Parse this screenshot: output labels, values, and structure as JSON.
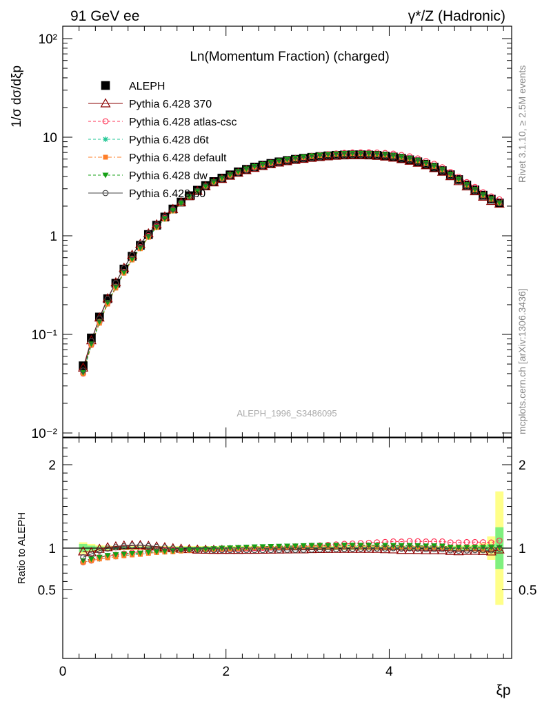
{
  "header": {
    "left": "91 GeV ee",
    "right": "γ*/Z (Hadronic)"
  },
  "side_labels": {
    "rivet": "Rivet 3.1.10, ≥ 2.5M events",
    "mcplots": "mcplots.cern.ch [arXiv:1306.3436]"
  },
  "colors": {
    "ALEPH": "#000000",
    "p370": "#8b0000",
    "atlas_csc": "#ff3355",
    "d6t": "#22c795",
    "default": "#ff7f2a",
    "dw": "#16a016",
    "p0": "#444444",
    "band_inner": "#7ff07f",
    "band_outer": "#ffff88"
  },
  "chart_data": [
    {
      "type": "scatter",
      "panel": "main",
      "title": "Ln(Momentum Fraction) (charged)",
      "analysis_label": "ALEPH_1996_S3486095",
      "ylabel": "1/σ dσ/dξp",
      "yscale": "log",
      "ylim": [
        0.01,
        130
      ],
      "xlim": [
        0,
        5.5
      ],
      "y_ticks": [
        "10⁻²",
        "10⁻¹",
        "1",
        "10",
        "10²"
      ],
      "legend_position": "top-left",
      "x": [
        0.25,
        0.35,
        0.45,
        0.55,
        0.65,
        0.75,
        0.85,
        0.95,
        1.05,
        1.15,
        1.25,
        1.35,
        1.45,
        1.55,
        1.65,
        1.75,
        1.85,
        1.95,
        2.05,
        2.15,
        2.25,
        2.35,
        2.45,
        2.55,
        2.65,
        2.75,
        2.85,
        2.95,
        3.05,
        3.15,
        3.25,
        3.35,
        3.45,
        3.55,
        3.65,
        3.75,
        3.85,
        3.95,
        4.05,
        4.15,
        4.25,
        4.35,
        4.45,
        4.55,
        4.65,
        4.75,
        4.85,
        4.95,
        5.05,
        5.15,
        5.25,
        5.35
      ],
      "series": [
        {
          "name": "ALEPH",
          "marker": "square",
          "values": [
            0.048,
            0.092,
            0.15,
            0.23,
            0.33,
            0.46,
            0.62,
            0.8,
            1.03,
            1.28,
            1.55,
            1.87,
            2.2,
            2.55,
            2.9,
            3.23,
            3.55,
            3.85,
            4.15,
            4.45,
            4.72,
            4.98,
            5.2,
            5.42,
            5.62,
            5.8,
            5.97,
            6.12,
            6.25,
            6.37,
            6.47,
            6.55,
            6.6,
            6.63,
            6.63,
            6.6,
            6.54,
            6.44,
            6.3,
            6.12,
            5.9,
            5.63,
            5.32,
            4.97,
            4.58,
            4.16,
            3.72,
            3.27,
            2.92,
            2.58,
            2.35,
            2.15
          ]
        },
        {
          "name": "Pythia 6.428 370",
          "marker": "triangle",
          "values": [
            0.046,
            0.087,
            0.148,
            0.232,
            0.337,
            0.473,
            0.641,
            0.826,
            1.057,
            1.304,
            1.566,
            1.867,
            2.183,
            2.517,
            2.845,
            3.165,
            3.472,
            3.765,
            4.058,
            4.352,
            4.621,
            4.877,
            5.098,
            5.318,
            5.52,
            5.7,
            5.873,
            6.023,
            6.17,
            6.29,
            6.398,
            6.48,
            6.534,
            6.567,
            6.567,
            6.534,
            6.47,
            6.35,
            6.197,
            5.981,
            5.761,
            5.495,
            5.183,
            4.842,
            4.462,
            4.018,
            3.578,
            3.161,
            2.826,
            2.49,
            2.253,
            2.113
          ]
        },
        {
          "name": "Pythia 6.428 atlas-csc",
          "marker": "circle-open",
          "values": [
            0.04,
            0.078,
            0.134,
            0.208,
            0.304,
            0.43,
            0.586,
            0.768,
            0.995,
            1.245,
            1.51,
            1.83,
            2.152,
            2.504,
            2.848,
            3.182,
            3.504,
            3.813,
            4.116,
            4.423,
            4.701,
            4.977,
            5.216,
            5.456,
            5.681,
            5.887,
            6.088,
            6.256,
            6.429,
            6.583,
            6.718,
            6.836,
            6.934,
            6.996,
            7.02,
            7.022,
            6.99,
            6.912,
            6.804,
            6.598,
            6.395,
            6.092,
            5.74,
            5.369,
            4.948,
            4.445,
            3.97,
            3.506,
            3.132,
            2.76,
            2.508,
            2.343
          ]
        },
        {
          "name": "Pythia 6.428 d6t",
          "marker": "star",
          "values": [
            0.04,
            0.078,
            0.13,
            0.204,
            0.296,
            0.419,
            0.571,
            0.743,
            0.97,
            1.216,
            1.482,
            1.794,
            2.13,
            2.486,
            2.836,
            3.175,
            3.504,
            3.824,
            4.133,
            4.45,
            4.739,
            5.019,
            5.257,
            5.498,
            5.71,
            5.905,
            6.087,
            6.263,
            6.413,
            6.537,
            6.641,
            6.727,
            6.785,
            6.816,
            6.812,
            6.784,
            6.716,
            6.608,
            6.457,
            6.265,
            6.047,
            5.761,
            5.422,
            5.075,
            4.663,
            4.176,
            3.729,
            3.279,
            2.928,
            2.586,
            2.355,
            2.151
          ]
        },
        {
          "name": "Pythia 6.428 default",
          "marker": "square-small",
          "values": [
            0.04,
            0.078,
            0.13,
            0.203,
            0.295,
            0.418,
            0.569,
            0.74,
            0.966,
            1.212,
            1.477,
            1.787,
            2.123,
            2.476,
            2.826,
            3.165,
            3.493,
            3.812,
            4.12,
            4.436,
            4.724,
            5.002,
            5.24,
            5.481,
            5.692,
            5.886,
            6.068,
            6.244,
            6.393,
            6.517,
            6.621,
            6.707,
            6.765,
            6.796,
            6.792,
            6.764,
            6.696,
            6.588,
            6.438,
            6.246,
            6.029,
            5.744,
            5.406,
            5.06,
            4.649,
            4.163,
            3.717,
            3.269,
            2.919,
            2.578,
            2.347,
            2.144
          ]
        },
        {
          "name": "Pythia 6.428 dw",
          "marker": "triangle-down",
          "values": [
            0.041,
            0.08,
            0.134,
            0.21,
            0.304,
            0.428,
            0.582,
            0.753,
            0.98,
            1.226,
            1.493,
            1.807,
            2.146,
            2.501,
            2.854,
            3.196,
            3.529,
            3.851,
            4.162,
            4.481,
            4.772,
            5.053,
            5.293,
            5.535,
            5.749,
            5.944,
            6.128,
            6.305,
            6.455,
            6.581,
            6.685,
            6.773,
            6.831,
            6.862,
            6.859,
            6.83,
            6.762,
            6.653,
            6.501,
            6.307,
            6.087,
            5.8,
            5.458,
            5.108,
            4.694,
            4.203,
            3.752,
            3.3,
            2.946,
            2.602,
            2.369,
            2.165
          ]
        },
        {
          "name": "Pythia 6.428 p0",
          "marker": "circle-open",
          "values": [
            0.043,
            0.086,
            0.145,
            0.229,
            0.333,
            0.47,
            0.639,
            0.826,
            1.055,
            1.298,
            1.561,
            1.862,
            2.174,
            2.509,
            2.837,
            3.158,
            3.465,
            3.758,
            4.05,
            4.341,
            4.608,
            4.861,
            5.074,
            5.293,
            5.491,
            5.67,
            5.84,
            5.989,
            6.134,
            6.259,
            6.369,
            6.46,
            6.524,
            6.563,
            6.573,
            6.548,
            6.494,
            6.382,
            6.249,
            6.045,
            5.84,
            5.568,
            5.24,
            4.904,
            4.497,
            4.016,
            3.579,
            3.161,
            2.833,
            2.507,
            2.28,
            2.135
          ]
        }
      ]
    },
    {
      "type": "scatter",
      "panel": "ratio",
      "ylabel": "Ratio to ALEPH",
      "xlabel": "ξp",
      "ylim": [
        0.35,
        2.3
      ],
      "xlim": [
        0,
        5.5
      ],
      "y_ticks": [
        "0.5",
        "1",
        "2"
      ],
      "x_ticks": [
        "0",
        "2",
        "4"
      ],
      "band_x": [
        0.25,
        0.35,
        0.45,
        0.55,
        0.65,
        0.75,
        0.85,
        0.95,
        1.05,
        1.15,
        1.25,
        1.35,
        1.45,
        1.55,
        1.65,
        1.75,
        1.85,
        1.95,
        2.05,
        2.15,
        2.25,
        2.35,
        2.45,
        2.55,
        2.65,
        2.75,
        2.85,
        2.95,
        3.05,
        3.15,
        3.25,
        3.35,
        3.45,
        3.55,
        3.65,
        3.75,
        3.85,
        3.95,
        4.05,
        4.15,
        4.25,
        4.35,
        4.45,
        4.55,
        4.65,
        4.75,
        4.85,
        4.95,
        5.05,
        5.15,
        5.25,
        5.35
      ],
      "band_inner": [
        0.05,
        0.03,
        0.02,
        0.015,
        0.015,
        0.015,
        0.015,
        0.015,
        0.015,
        0.015,
        0.015,
        0.015,
        0.015,
        0.015,
        0.015,
        0.015,
        0.015,
        0.015,
        0.015,
        0.015,
        0.015,
        0.015,
        0.015,
        0.015,
        0.015,
        0.015,
        0.015,
        0.015,
        0.015,
        0.015,
        0.015,
        0.015,
        0.015,
        0.015,
        0.015,
        0.015,
        0.015,
        0.015,
        0.015,
        0.015,
        0.015,
        0.015,
        0.015,
        0.015,
        0.015,
        0.02,
        0.02,
        0.02,
        0.025,
        0.03,
        0.05,
        0.25
      ],
      "band_outer": [
        0.07,
        0.05,
        0.035,
        0.03,
        0.025,
        0.025,
        0.025,
        0.025,
        0.025,
        0.025,
        0.025,
        0.025,
        0.025,
        0.025,
        0.025,
        0.025,
        0.025,
        0.025,
        0.025,
        0.025,
        0.025,
        0.025,
        0.025,
        0.025,
        0.025,
        0.025,
        0.025,
        0.025,
        0.025,
        0.025,
        0.025,
        0.025,
        0.025,
        0.025,
        0.025,
        0.025,
        0.025,
        0.025,
        0.025,
        0.025,
        0.025,
        0.025,
        0.025,
        0.025,
        0.025,
        0.03,
        0.03,
        0.035,
        0.04,
        0.06,
        0.14,
        0.68
      ],
      "series": [
        {
          "name": "Pythia 6.428 370",
          "values": [
            0.96,
            0.95,
            0.99,
            1.01,
            1.02,
            1.03,
            1.035,
            1.035,
            1.027,
            1.019,
            1.01,
            0.998,
            0.992,
            0.987,
            0.981,
            0.98,
            0.978,
            0.978,
            0.978,
            0.978,
            0.979,
            0.979,
            0.98,
            0.981,
            0.982,
            0.983,
            0.984,
            0.984,
            0.987,
            0.988,
            0.989,
            0.99,
            0.99,
            0.99,
            0.99,
            0.99,
            0.99,
            0.986,
            0.984,
            0.977,
            0.977,
            0.976,
            0.974,
            0.974,
            0.974,
            0.966,
            0.962,
            0.967,
            0.968,
            0.965,
            0.959,
            0.983
          ]
        },
        {
          "name": "Pythia 6.428 atlas-csc",
          "values": [
            0.83,
            0.85,
            0.89,
            0.905,
            0.92,
            0.935,
            0.945,
            0.96,
            0.966,
            0.973,
            0.974,
            0.979,
            0.978,
            0.982,
            0.982,
            0.985,
            0.987,
            0.99,
            0.992,
            0.994,
            0.996,
            0.999,
            1.003,
            1.007,
            1.011,
            1.015,
            1.02,
            1.022,
            1.029,
            1.033,
            1.038,
            1.044,
            1.051,
            1.055,
            1.059,
            1.064,
            1.069,
            1.073,
            1.08,
            1.078,
            1.084,
            1.082,
            1.079,
            1.08,
            1.08,
            1.068,
            1.067,
            1.072,
            1.072,
            1.07,
            1.067,
            1.09
          ]
        },
        {
          "name": "Pythia 6.428 d6t",
          "values": [
            0.83,
            0.85,
            0.87,
            0.886,
            0.897,
            0.911,
            0.921,
            0.929,
            0.942,
            0.95,
            0.956,
            0.959,
            0.968,
            0.975,
            0.978,
            0.983,
            0.987,
            0.993,
            0.996,
            1.0,
            1.004,
            1.008,
            1.011,
            1.014,
            1.016,
            1.018,
            1.019,
            1.023,
            1.026,
            1.026,
            1.026,
            1.027,
            1.028,
            1.028,
            1.027,
            1.028,
            1.027,
            1.026,
            1.025,
            1.024,
            1.025,
            1.023,
            1.019,
            1.021,
            1.018,
            1.004,
            1.002,
            1.003,
            1.003,
            1.002,
            1.002,
            1.0
          ]
        },
        {
          "name": "Pythia 6.428 default",
          "values": [
            0.83,
            0.85,
            0.87,
            0.884,
            0.895,
            0.909,
            0.918,
            0.925,
            0.938,
            0.947,
            0.953,
            0.956,
            0.965,
            0.971,
            0.975,
            0.98,
            0.984,
            0.99,
            0.993,
            0.997,
            1.001,
            1.005,
            1.008,
            1.011,
            1.013,
            1.015,
            1.016,
            1.02,
            1.023,
            1.023,
            1.023,
            1.024,
            1.025,
            1.025,
            1.024,
            1.025,
            1.024,
            1.023,
            1.022,
            1.021,
            1.022,
            1.02,
            1.016,
            1.018,
            1.015,
            1.001,
            0.999,
            1.0,
            1.0,
            0.999,
            0.999,
            0.997
          ]
        },
        {
          "name": "Pythia 6.428 dw",
          "values": [
            0.85,
            0.87,
            0.89,
            0.912,
            0.923,
            0.93,
            0.938,
            0.941,
            0.951,
            0.958,
            0.963,
            0.966,
            0.975,
            0.981,
            0.984,
            0.99,
            0.994,
            1.0,
            1.003,
            1.007,
            1.011,
            1.015,
            1.018,
            1.021,
            1.023,
            1.025,
            1.026,
            1.03,
            1.033,
            1.033,
            1.033,
            1.034,
            1.035,
            1.035,
            1.034,
            1.035,
            1.034,
            1.033,
            1.032,
            1.031,
            1.032,
            1.03,
            1.026,
            1.028,
            1.025,
            1.011,
            1.009,
            1.01,
            1.01,
            1.009,
            1.009,
            1.007
          ]
        },
        {
          "name": "Pythia 6.428 p0",
          "values": [
            0.89,
            0.93,
            0.97,
            0.995,
            1.01,
            1.021,
            1.03,
            1.033,
            1.024,
            1.014,
            1.007,
            0.996,
            0.988,
            0.984,
            0.978,
            0.978,
            0.976,
            0.976,
            0.976,
            0.976,
            0.976,
            0.976,
            0.976,
            0.977,
            0.977,
            0.978,
            0.978,
            0.979,
            0.981,
            0.983,
            0.985,
            0.987,
            0.989,
            0.991,
            0.993,
            0.994,
            0.995,
            0.995,
            0.999,
            0.994,
            0.998,
            0.994,
            0.989,
            0.99,
            0.988,
            0.974,
            0.969,
            0.972,
            0.976,
            0.975,
            0.973,
            0.993
          ]
        }
      ]
    }
  ]
}
